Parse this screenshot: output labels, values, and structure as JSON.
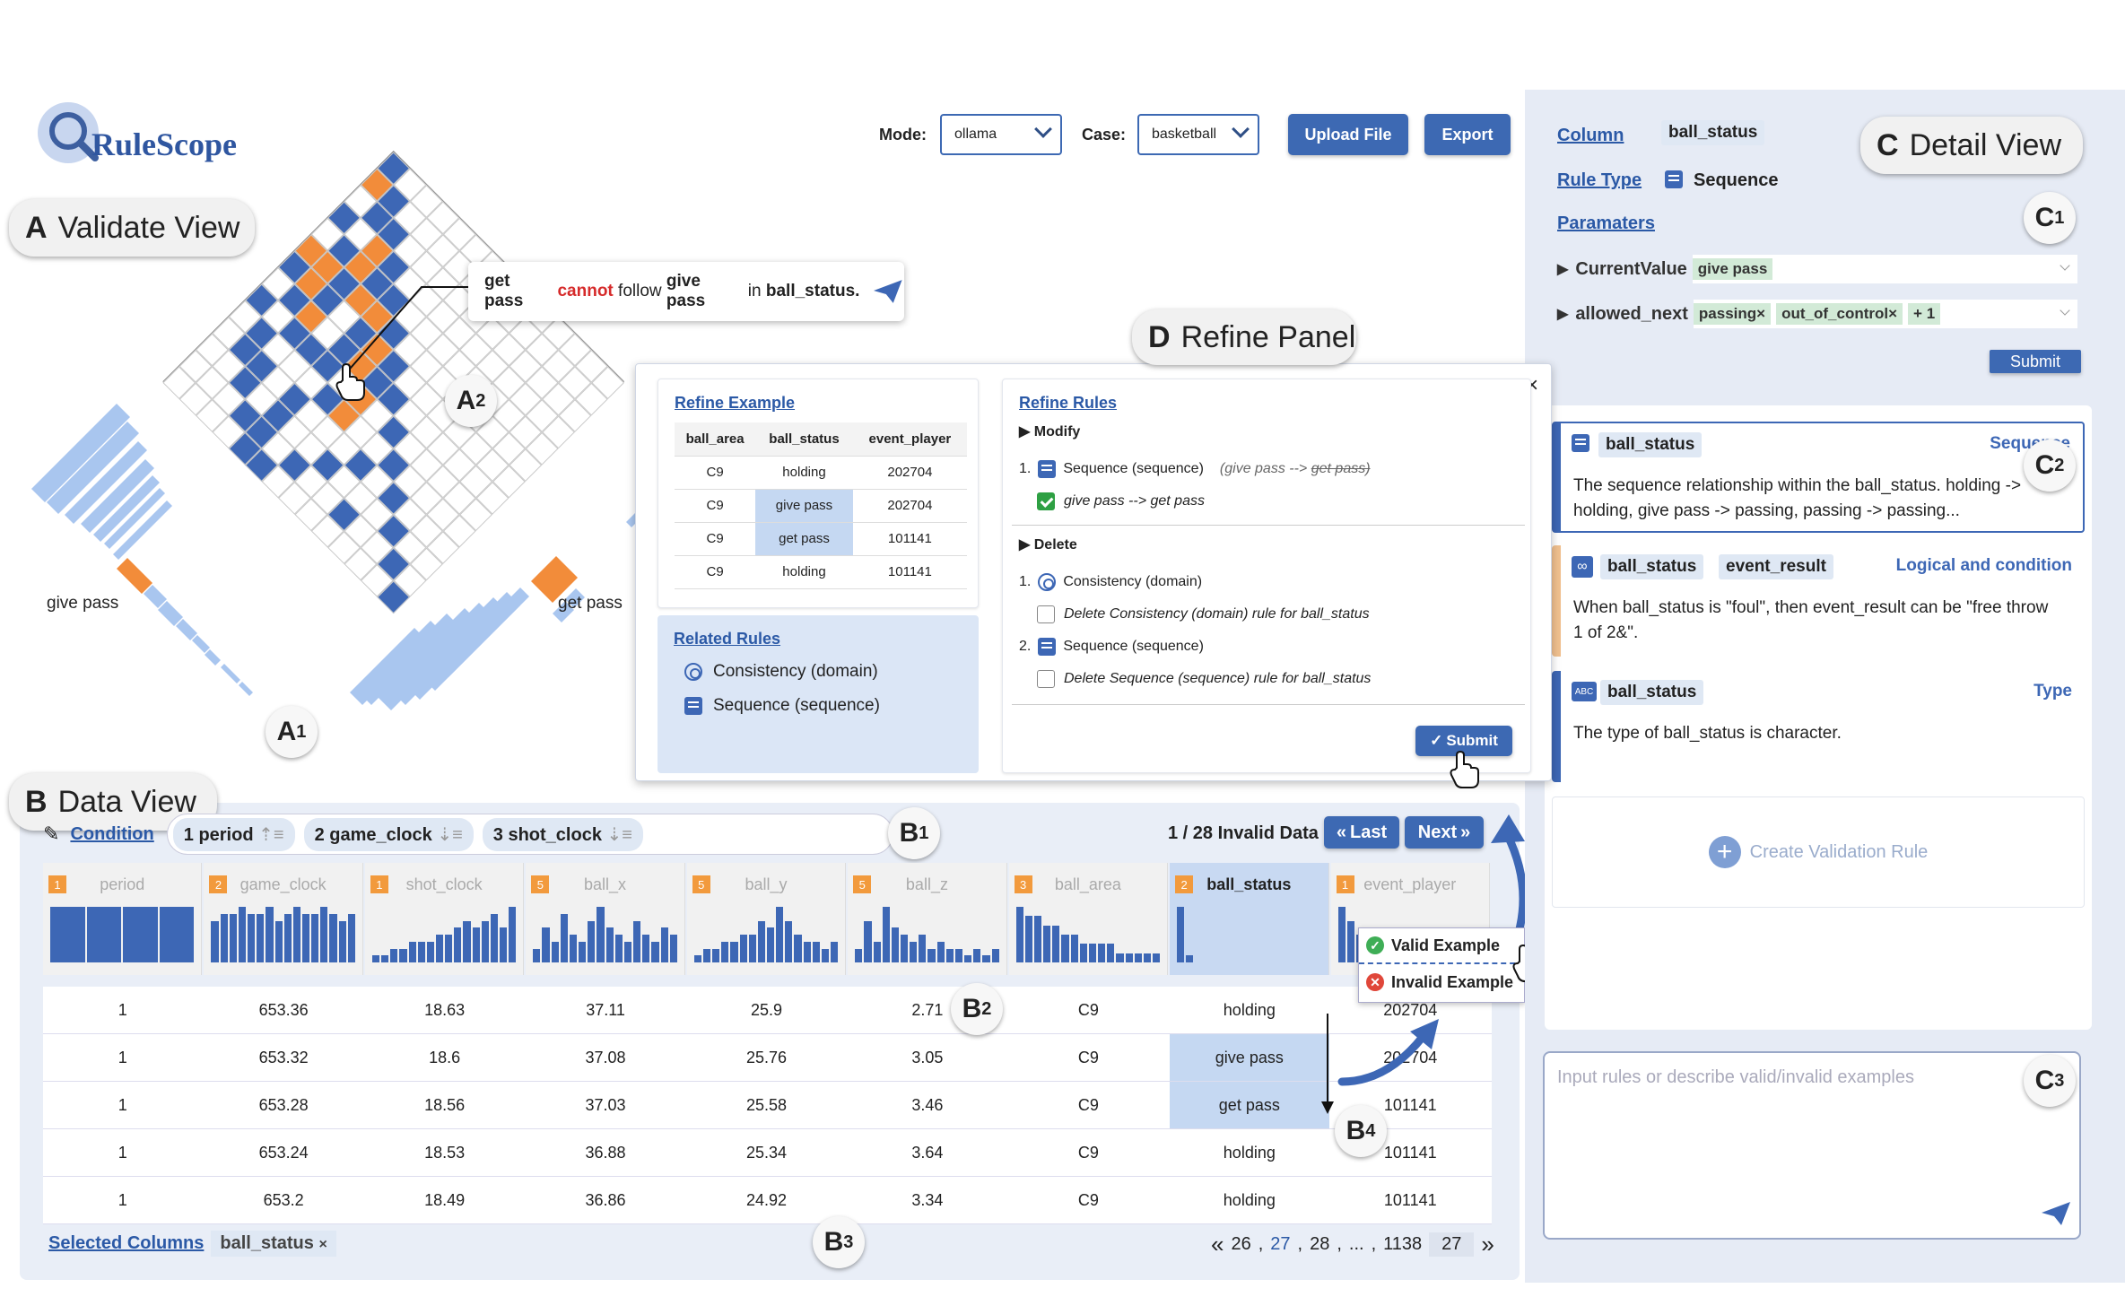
{
  "app": {
    "logo_text": "RuleScope"
  },
  "toolbar": {
    "mode_label": "Mode:",
    "mode_value": "ollama",
    "case_label": "Case:",
    "case_value": "basketball",
    "upload_label": "Upload File",
    "export_label": "Export"
  },
  "views": {
    "validate": {
      "letter": "A",
      "title": "Validate View"
    },
    "data": {
      "letter": "B",
      "title": "Data View"
    },
    "detail": {
      "letter": "C",
      "title": "Detail View"
    },
    "refine": {
      "letter": "D",
      "title": "Refine Panel"
    }
  },
  "markers": {
    "a1": "A",
    "a1_sub": "1",
    "a2": "A",
    "a2_sub": "2",
    "b1": "B",
    "b1_sub": "1",
    "b2": "B",
    "b2_sub": "2",
    "b3": "B",
    "b3_sub": "3",
    "b4": "B",
    "b4_sub": "4",
    "c1": "C",
    "c1_sub": "1",
    "c2": "C",
    "c2_sub": "2",
    "c3": "C",
    "c3_sub": "3"
  },
  "validate": {
    "tooltip": {
      "part1": "get pass",
      "part2": "cannot",
      "part3": "follow",
      "part4": "give pass",
      "part5": "in",
      "part6": "ball_status."
    },
    "left_axis_label": "give pass",
    "right_axis_label": "get pass"
  },
  "data_view": {
    "condition_label": "Condition",
    "conditions": [
      {
        "order": "1",
        "name": "period"
      },
      {
        "order": "2",
        "name": "game_clock"
      },
      {
        "order": "3",
        "name": "shot_clock"
      }
    ],
    "invalid_count": "1 / 28 Invalid Data",
    "last_label": "Last",
    "next_label": "Next",
    "columns": [
      {
        "badge": "1",
        "name": "period"
      },
      {
        "badge": "2",
        "name": "game_clock"
      },
      {
        "badge": "1",
        "name": "shot_clock"
      },
      {
        "badge": "5",
        "name": "ball_x"
      },
      {
        "badge": "5",
        "name": "ball_y"
      },
      {
        "badge": "5",
        "name": "ball_z"
      },
      {
        "badge": "3",
        "name": "ball_area"
      },
      {
        "badge": "2",
        "name": "ball_status"
      },
      {
        "badge": "1",
        "name": "event_player"
      }
    ],
    "rows": [
      [
        "1",
        "653.36",
        "18.63",
        "37.11",
        "25.9",
        "2.71",
        "C9",
        "holding",
        "202704"
      ],
      [
        "1",
        "653.32",
        "18.6",
        "37.08",
        "25.76",
        "3.05",
        "C9",
        "give pass",
        "202704"
      ],
      [
        "1",
        "653.28",
        "18.56",
        "37.03",
        "25.58",
        "3.46",
        "C9",
        "get pass",
        "101141"
      ],
      [
        "1",
        "653.24",
        "18.53",
        "36.88",
        "25.34",
        "3.64",
        "C9",
        "holding",
        "101141"
      ],
      [
        "1",
        "653.2",
        "18.49",
        "36.86",
        "24.92",
        "3.34",
        "C9",
        "holding",
        "101141"
      ]
    ],
    "popup": {
      "valid": "Valid Example",
      "invalid": "Invalid Example"
    },
    "selected_columns_label": "Selected Columns",
    "selected_column": "ball_status",
    "pagination": {
      "prev": "«",
      "p1": "26",
      "p2": "27",
      "p3": "28",
      "ellipsis": "...",
      "last": "1138",
      "current": "27",
      "next": "»"
    }
  },
  "detail": {
    "column_label": "Column",
    "column_value": "ball_status",
    "rule_type_label": "Rule Type",
    "rule_type_value": "Sequence",
    "parameters_label": "Paramaters",
    "current_value_label": "CurrentValue",
    "current_value": "give pass",
    "allowed_next_label": "allowed_next",
    "allowed_next": [
      "passing",
      "out_of_control"
    ],
    "allowed_more": "+ 1",
    "submit_label": "Submit",
    "rules": [
      {
        "tags": [
          "ball_status"
        ],
        "type": "Sequence",
        "text": "The sequence relationship within the ball_status.  holding -> holding, give pass -> passing, passing -> passing..."
      },
      {
        "tags": [
          "ball_status",
          "event_result"
        ],
        "type": "Logical and condition",
        "text": "When ball_status is \"foul\", then event_result can be \"free throw 1 of 2&\"."
      },
      {
        "tags": [
          "ball_status"
        ],
        "type": "Type",
        "text": "The type of ball_status is character."
      }
    ],
    "create_rule_label": "Create Validation Rule",
    "input_placeholder": "Input rules or describe valid/invalid examples"
  },
  "refine": {
    "example_title": "Refine Example",
    "example_headers": [
      "ball_area",
      "ball_status",
      "event_player"
    ],
    "example_rows": [
      [
        "C9",
        "holding",
        "202704"
      ],
      [
        "C9",
        "give pass",
        "202704"
      ],
      [
        "C9",
        "get pass",
        "101141"
      ],
      [
        "C9",
        "holding",
        "101141"
      ]
    ],
    "related_title": "Related Rules",
    "related": [
      "Consistency (domain)",
      "Sequence (sequence)"
    ],
    "rules_title": "Refine Rules",
    "modify_label": "Modify",
    "modify_item": "Sequence (sequence)",
    "modify_hint_old": "(give pass -->",
    "modify_hint_strike": "get pass)",
    "modify_new": "give pass --> get pass",
    "delete_label": "Delete",
    "delete_items": [
      {
        "name": "Consistency (domain)",
        "action": "Delete Consistency (domain) rule for ball_status"
      },
      {
        "name": "Sequence (sequence)",
        "action": "Delete Sequence (sequence) rule for ball_status"
      }
    ],
    "submit_label": "Submit",
    "close": "×",
    "num1": "1.",
    "num2": "2."
  },
  "colors": {
    "blue": "#3d67b5",
    "orange": "#f28c3a",
    "light_blue": "#a9c6ef"
  }
}
